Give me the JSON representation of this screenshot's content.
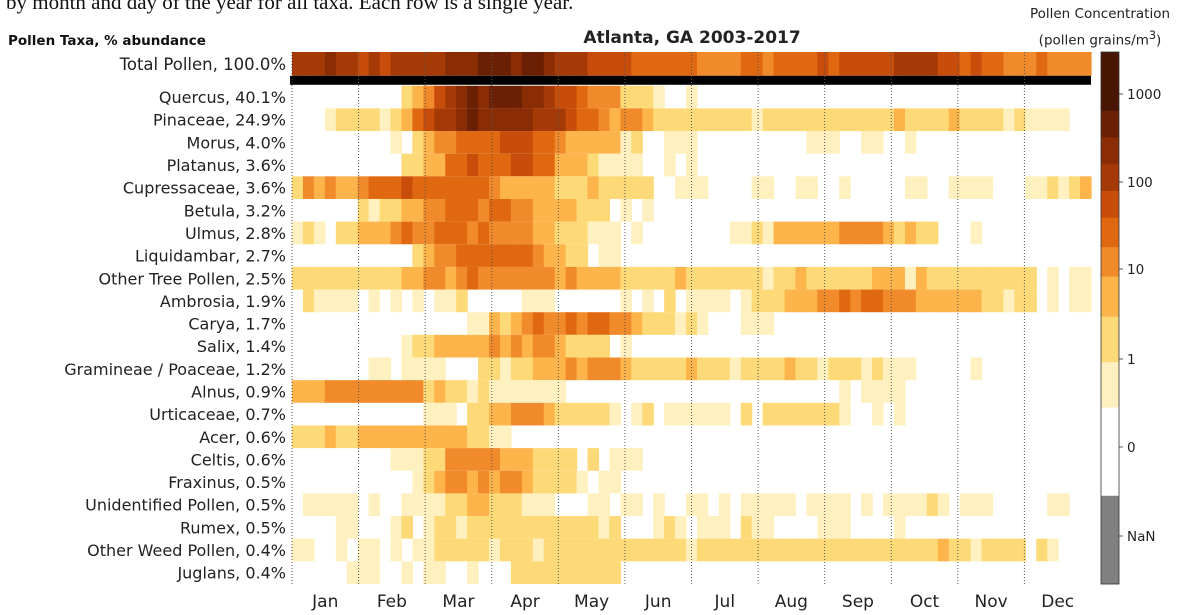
{
  "top_text": "by month and day of the year for all taxa. Each row is a single year.",
  "chart_data": {
    "type": "heatmap",
    "title": "Atlanta, GA  2003-2017",
    "ylabel": "Pollen Taxa, % abundance",
    "colorbar_title_line1": "Pollen Concentration",
    "colorbar_title_line2": "(pollen grains/m",
    "colorbar_title_sup": "3",
    "colorbar_title_end": ")",
    "colorbar_ticks": [
      "NaN",
      "0",
      "1",
      "10",
      "100",
      "1000"
    ],
    "colorbar_colors": [
      "#808080",
      "#ffffff",
      "#fff0bf",
      "#fed977",
      "#fdb44b",
      "#f08a2a",
      "#e06810",
      "#c84d0a",
      "#a53a06",
      "#8a2c04",
      "#6b2004",
      "#4a1604"
    ],
    "months": [
      "Jan",
      "Feb",
      "Mar",
      "Apr",
      "May",
      "Jun",
      "Jul",
      "Aug",
      "Sep",
      "Oct",
      "Nov",
      "Dec"
    ],
    "rows": [
      {
        "label": "Total Pollen, 100.0%",
        "month_levels": [
          7,
          6,
          8,
          9,
          6,
          5,
          4,
          5,
          6,
          7,
          5,
          4
        ]
      },
      {
        "label": "Quercus, 40.1%",
        "month_levels": [
          0,
          0,
          8,
          9,
          4,
          1,
          0,
          0,
          0,
          0,
          0,
          0
        ]
      },
      {
        "label": "Pinaceae, 24.9%",
        "month_levels": [
          1,
          2,
          8,
          8,
          5,
          2,
          2,
          2,
          2,
          2,
          2,
          1
        ]
      },
      {
        "label": "Morus, 4.0%",
        "month_levels": [
          0,
          0,
          5,
          6,
          3,
          1,
          0,
          0,
          1,
          0,
          0,
          0
        ]
      },
      {
        "label": "Platanus, 3.6%",
        "month_levels": [
          0,
          0,
          5,
          6,
          2,
          1,
          0,
          0,
          0,
          0,
          0,
          0
        ]
      },
      {
        "label": "Cupressaceae, 3.6%",
        "month_levels": [
          3,
          5,
          5,
          3,
          2,
          1,
          1,
          1,
          1,
          1,
          1,
          2
        ]
      },
      {
        "label": "Betula, 3.2%",
        "month_levels": [
          0,
          2,
          5,
          4,
          2,
          0,
          0,
          0,
          0,
          0,
          0,
          0
        ]
      },
      {
        "label": "Ulmus, 2.8%",
        "month_levels": [
          1,
          4,
          5,
          4,
          1,
          0,
          0,
          3,
          4,
          2,
          0,
          0
        ]
      },
      {
        "label": "Liquidambar, 2.7%",
        "month_levels": [
          0,
          0,
          5,
          5,
          1,
          0,
          0,
          0,
          0,
          0,
          0,
          0
        ]
      },
      {
        "label": "Other Tree Pollen, 2.5%",
        "month_levels": [
          2,
          2,
          4,
          4,
          3,
          2,
          2,
          2,
          2,
          2,
          2,
          1
        ]
      },
      {
        "label": "Ambrosia, 1.9%",
        "month_levels": [
          1,
          1,
          1,
          1,
          1,
          1,
          1,
          3,
          5,
          4,
          2,
          1
        ]
      },
      {
        "label": "Carya, 1.7%",
        "month_levels": [
          0,
          0,
          0,
          4,
          5,
          2,
          1,
          0,
          0,
          0,
          0,
          0
        ]
      },
      {
        "label": "Salix, 1.4%",
        "month_levels": [
          0,
          1,
          3,
          4,
          2,
          0,
          0,
          0,
          0,
          0,
          0,
          0
        ]
      },
      {
        "label": "Gramineae / Poaceae, 1.2%",
        "month_levels": [
          0,
          1,
          1,
          2,
          4,
          2,
          2,
          2,
          2,
          1,
          0,
          0
        ]
      },
      {
        "label": "Alnus, 0.9%",
        "month_levels": [
          3,
          4,
          2,
          1,
          0,
          0,
          0,
          0,
          1,
          0,
          0,
          0
        ]
      },
      {
        "label": "Urticaceae, 0.7%",
        "month_levels": [
          0,
          0,
          1,
          4,
          2,
          1,
          1,
          2,
          1,
          0,
          0,
          0
        ]
      },
      {
        "label": "Acer, 0.6%",
        "month_levels": [
          2,
          3,
          3,
          1,
          0,
          0,
          0,
          0,
          0,
          0,
          0,
          0
        ]
      },
      {
        "label": "Celtis, 0.6%",
        "month_levels": [
          0,
          0,
          4,
          3,
          1,
          0,
          0,
          0,
          0,
          0,
          0,
          0
        ]
      },
      {
        "label": "Fraxinus, 0.5%",
        "month_levels": [
          0,
          0,
          4,
          3,
          1,
          0,
          0,
          0,
          0,
          0,
          0,
          0
        ]
      },
      {
        "label": "Unidentified Pollen, 0.5%",
        "month_levels": [
          1,
          1,
          2,
          2,
          1,
          1,
          1,
          1,
          1,
          1,
          1,
          1
        ]
      },
      {
        "label": "Rumex, 0.5%",
        "month_levels": [
          0,
          1,
          2,
          2,
          2,
          1,
          1,
          1,
          1,
          0,
          0,
          0
        ]
      },
      {
        "label": "Other Weed Pollen, 0.4%",
        "month_levels": [
          1,
          1,
          2,
          2,
          2,
          2,
          2,
          2,
          2,
          2,
          2,
          1
        ]
      },
      {
        "label": "Juglans, 0.4%",
        "month_levels": [
          0,
          1,
          0,
          2,
          2,
          0,
          0,
          0,
          0,
          0,
          0,
          0
        ]
      }
    ]
  }
}
